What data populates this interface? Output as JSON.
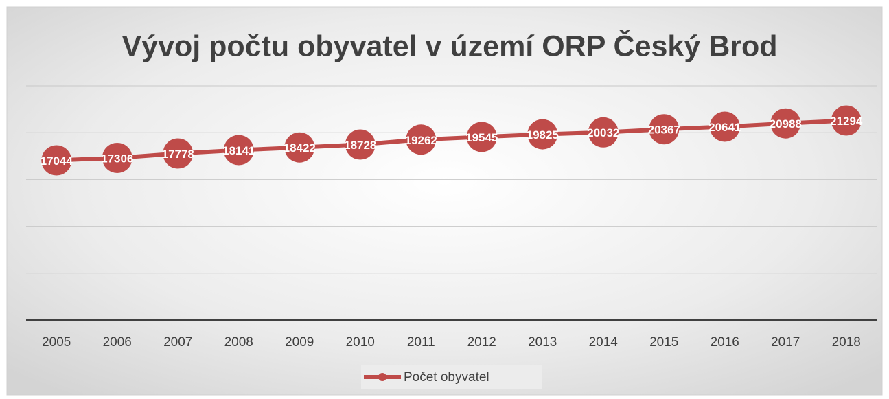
{
  "chart_data": {
    "type": "line",
    "title": "Vývoj počtu obyvatel v území  ORP Český Brod",
    "categories": [
      "2005",
      "2006",
      "2007",
      "2008",
      "2009",
      "2010",
      "2011",
      "2012",
      "2013",
      "2014",
      "2015",
      "2016",
      "2017",
      "2018"
    ],
    "series": [
      {
        "name": "Počet obyvatel",
        "color": "#bf4b49",
        "values": [
          17044,
          17306,
          17778,
          18141,
          18422,
          18728,
          19262,
          19545,
          19825,
          20032,
          20367,
          20641,
          20988,
          21294
        ]
      }
    ],
    "ylim": [
      0,
      25000
    ],
    "yticks": [
      0,
      5000,
      10000,
      15000,
      20000,
      25000
    ],
    "grid": true,
    "legend": "bottom"
  }
}
